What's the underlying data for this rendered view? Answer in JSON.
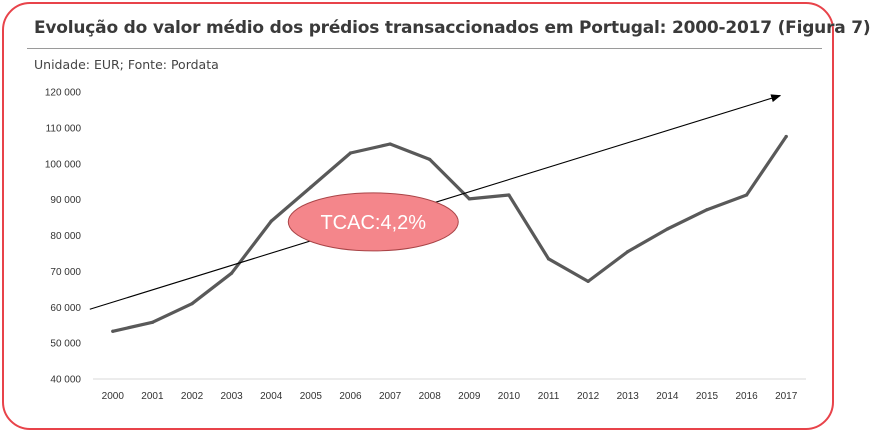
{
  "header": {
    "title": "Evolução do valor médio dos prédios transaccionados em Portugal: 2000-2017 (Figura 7)",
    "source": "Unidade: EUR; Fonte: Pordata"
  },
  "chart_data": {
    "type": "line",
    "title": "Evolução do valor médio dos prédios transaccionados em Portugal: 2000-2017 (Figura 7)",
    "subtitle": "Unidade: EUR; Fonte: Pordata",
    "categories": [
      "2000",
      "2001",
      "2002",
      "2003",
      "2004",
      "2005",
      "2006",
      "2007",
      "2008",
      "2009",
      "2010",
      "2011",
      "2012",
      "2013",
      "2014",
      "2015",
      "2016",
      "2017"
    ],
    "series": [
      {
        "values": [
          53300,
          55800,
          61000,
          69500,
          84000,
          93500,
          103000,
          105500,
          101200,
          90200,
          91300,
          73500,
          67200,
          75500,
          81800,
          87200,
          91300,
          107600
        ],
        "color": "#595959"
      }
    ],
    "y_ticks": [
      "40 000",
      "50 000",
      "60 000",
      "70 000",
      "80 000",
      "90 000",
      "100 000",
      "110 000",
      "120 000"
    ],
    "ylim": [
      40000,
      120000
    ],
    "xlabel": "",
    "ylabel": "",
    "grid": false,
    "legend": "none",
    "annotations": [
      {
        "text": "TCAC:4,2%",
        "fill": "#f4868b"
      },
      {
        "type": "trend-arrow",
        "from": [
          "2000",
          60000
        ],
        "to": [
          "2017",
          119000
        ]
      }
    ]
  }
}
